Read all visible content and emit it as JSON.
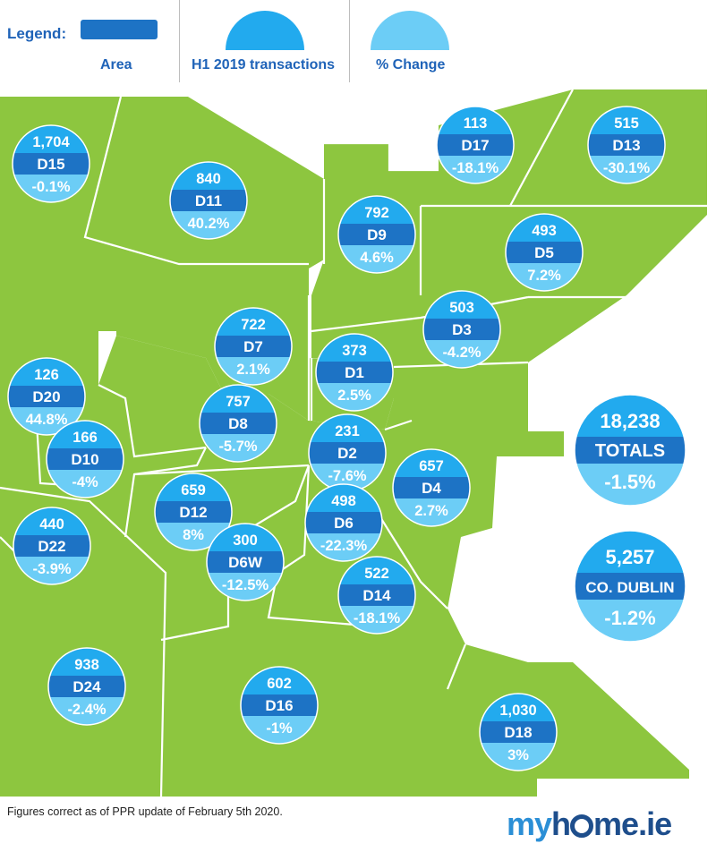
{
  "legend": {
    "title": "Legend:",
    "area_label": "Area",
    "transactions_label": "H1 2019 transactions",
    "change_label": "% Change"
  },
  "colors": {
    "land": "#8dc63f",
    "border": "#ffffff",
    "top_blue": "#22aaee",
    "band_blue": "#1d73c5",
    "bottom_blue": "#6ccdf6"
  },
  "districts": [
    {
      "area": "D15",
      "transactions": "1,704",
      "change": "-0.1%"
    },
    {
      "area": "D11",
      "transactions": "840",
      "change": "40.2%"
    },
    {
      "area": "D17",
      "transactions": "113",
      "change": "-18.1%"
    },
    {
      "area": "D13",
      "transactions": "515",
      "change": "-30.1%"
    },
    {
      "area": "D9",
      "transactions": "792",
      "change": "4.6%"
    },
    {
      "area": "D5",
      "transactions": "493",
      "change": "7.2%"
    },
    {
      "area": "D3",
      "transactions": "503",
      "change": "-4.2%"
    },
    {
      "area": "D7",
      "transactions": "722",
      "change": "2.1%"
    },
    {
      "area": "D1",
      "transactions": "373",
      "change": "2.5%"
    },
    {
      "area": "D20",
      "transactions": "126",
      "change": "44.8%"
    },
    {
      "area": "D8",
      "transactions": "757",
      "change": "-5.7%"
    },
    {
      "area": "D10",
      "transactions": "166",
      "change": "-4%"
    },
    {
      "area": "D2",
      "transactions": "231",
      "change": "-7.6%"
    },
    {
      "area": "D4",
      "transactions": "657",
      "change": "2.7%"
    },
    {
      "area": "D12",
      "transactions": "659",
      "change": "8%"
    },
    {
      "area": "D6",
      "transactions": "498",
      "change": "-22.3%"
    },
    {
      "area": "D22",
      "transactions": "440",
      "change": "-3.9%"
    },
    {
      "area": "D6W",
      "transactions": "300",
      "change": "-12.5%"
    },
    {
      "area": "D14",
      "transactions": "522",
      "change": "-18.1%"
    },
    {
      "area": "D24",
      "transactions": "938",
      "change": "-2.4%"
    },
    {
      "area": "D16",
      "transactions": "602",
      "change": "-1%"
    },
    {
      "area": "D18",
      "transactions": "1,030",
      "change": "3%"
    }
  ],
  "summaries": [
    {
      "area": "TOTALS",
      "transactions": "18,238",
      "change": "-1.5%"
    },
    {
      "area": "CO. DUBLIN",
      "transactions": "5,257",
      "change": "-1.2%"
    }
  ],
  "footnote": "Figures correct as of PPR update of February 5th 2020.",
  "logo": {
    "part1": "my",
    "part2": "h",
    "part3": "me.ie"
  }
}
